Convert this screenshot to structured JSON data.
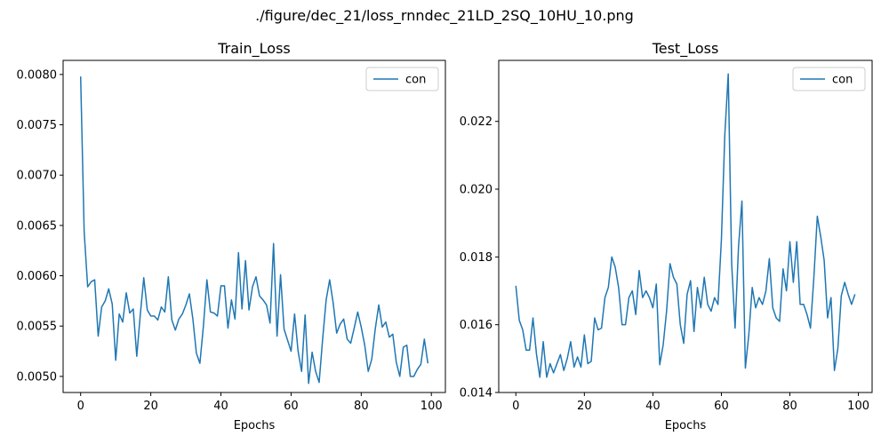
{
  "suptitle": "./figure/dec_21/loss_rnndec_21LD_2SQ_10HU_10.png",
  "colors": {
    "series": "#1f77b4",
    "axes": "#000000",
    "legend_border": "#cccccc"
  },
  "chart_data": [
    {
      "type": "line",
      "title": "Train_Loss",
      "xlabel": "Epochs",
      "ylabel": "",
      "xlim": [
        -5,
        104
      ],
      "ylim": [
        0.00484,
        0.00814
      ],
      "xticks": [
        0,
        20,
        40,
        60,
        80,
        100
      ],
      "yticks": [
        0.005,
        0.0055,
        0.006,
        0.0065,
        0.007,
        0.0075,
        0.008
      ],
      "ytick_labels": [
        "0.0050",
        "0.0055",
        "0.0060",
        "0.0065",
        "0.0070",
        "0.0075",
        "0.0080"
      ],
      "legend": "top-right",
      "grid": false,
      "series": [
        {
          "name": "con",
          "values": [
            0.00798,
            0.00644,
            0.00589,
            0.00594,
            0.00596,
            0.0054,
            0.00569,
            0.00575,
            0.00587,
            0.00572,
            0.00516,
            0.00562,
            0.00554,
            0.00583,
            0.00563,
            0.00567,
            0.0052,
            0.00561,
            0.00598,
            0.00566,
            0.0056,
            0.0056,
            0.00556,
            0.00569,
            0.00564,
            0.00599,
            0.00556,
            0.00546,
            0.00557,
            0.00562,
            0.00571,
            0.00582,
            0.00557,
            0.00523,
            0.00513,
            0.0055,
            0.00596,
            0.00564,
            0.00563,
            0.0056,
            0.0059,
            0.0059,
            0.00548,
            0.00576,
            0.00557,
            0.00623,
            0.00567,
            0.00615,
            0.00566,
            0.00589,
            0.00599,
            0.0058,
            0.00576,
            0.00571,
            0.00553,
            0.00632,
            0.0054,
            0.00601,
            0.00547,
            0.00536,
            0.00525,
            0.00562,
            0.00525,
            0.00505,
            0.00561,
            0.00493,
            0.00524,
            0.00505,
            0.00494,
            0.00537,
            0.00576,
            0.00596,
            0.00573,
            0.00543,
            0.00552,
            0.00557,
            0.00537,
            0.00533,
            0.00548,
            0.00564,
            0.00549,
            0.00531,
            0.00505,
            0.00517,
            0.00547,
            0.00571,
            0.00549,
            0.00554,
            0.00539,
            0.00542,
            0.00514,
            0.005,
            0.00529,
            0.00531,
            0.005,
            0.005,
            0.00507,
            0.00512,
            0.00537,
            0.00513
          ]
        }
      ]
    },
    {
      "type": "line",
      "title": "Test_Loss",
      "xlabel": "Epochs",
      "ylabel": "",
      "xlim": [
        -5,
        104
      ],
      "ylim": [
        0.014,
        0.0238
      ],
      "xticks": [
        0,
        20,
        40,
        60,
        80,
        100
      ],
      "yticks": [
        0.014,
        0.016,
        0.018,
        0.02,
        0.022
      ],
      "ytick_labels": [
        "0.014",
        "0.016",
        "0.018",
        "0.020",
        "0.022"
      ],
      "legend": "top-right",
      "grid": false,
      "series": [
        {
          "name": "con",
          "values": [
            0.01715,
            0.01613,
            0.01585,
            0.01525,
            0.01525,
            0.0162,
            0.01515,
            0.01445,
            0.0155,
            0.01445,
            0.01485,
            0.01458,
            0.01485,
            0.01512,
            0.01465,
            0.015,
            0.0155,
            0.01475,
            0.01505,
            0.01475,
            0.0157,
            0.01485,
            0.01492,
            0.0162,
            0.01585,
            0.0159,
            0.0168,
            0.0171,
            0.018,
            0.0177,
            0.0171,
            0.016,
            0.016,
            0.0168,
            0.017,
            0.0163,
            0.0176,
            0.0168,
            0.017,
            0.0168,
            0.0165,
            0.0172,
            0.01482,
            0.0154,
            0.0164,
            0.0178,
            0.0174,
            0.0172,
            0.016,
            0.01545,
            0.0169,
            0.0173,
            0.0158,
            0.0171,
            0.0165,
            0.0174,
            0.0166,
            0.0164,
            0.0168,
            0.0166,
            0.0185,
            0.0216,
            0.0234,
            0.0178,
            0.0159,
            0.0183,
            0.01965,
            0.01472,
            0.0157,
            0.0171,
            0.0165,
            0.0168,
            0.0166,
            0.017,
            0.01795,
            0.0165,
            0.0162,
            0.0161,
            0.01765,
            0.017,
            0.01845,
            0.01725,
            0.01845,
            0.0166,
            0.0166,
            0.0163,
            0.0159,
            0.0174,
            0.0192,
            0.0186,
            0.0179,
            0.0162,
            0.0168,
            0.01465,
            0.0153,
            0.01685,
            0.01725,
            0.0169,
            0.0166,
            0.0169
          ]
        }
      ]
    }
  ]
}
